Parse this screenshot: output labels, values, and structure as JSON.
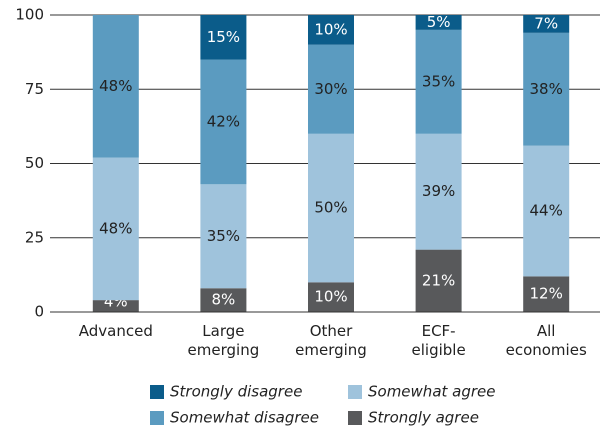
{
  "chart_data": {
    "type": "stacked-bar",
    "categories": [
      "Advanced",
      "Large emerging",
      "Other emerging",
      "ECF-eligible",
      "All economies"
    ],
    "series": [
      {
        "name": "Strongly agree",
        "color": "#58595b",
        "values": [
          4,
          8,
          10,
          21,
          12
        ],
        "value_labels": [
          "4%",
          "8%",
          "10%",
          "21%",
          "12%"
        ]
      },
      {
        "name": "Somewhat agree",
        "color": "#9fc3dc",
        "values": [
          48,
          35,
          50,
          39,
          44
        ],
        "value_labels": [
          "48%",
          "35%",
          "50%",
          "39%",
          "44%"
        ]
      },
      {
        "name": "Somewhat disagree",
        "color": "#5b9bc0",
        "values": [
          48,
          42,
          30,
          35,
          38
        ],
        "value_labels": [
          "48%",
          "42%",
          "30%",
          "35%",
          "38%"
        ]
      },
      {
        "name": "Strongly disagree",
        "color": "#0b5c8a",
        "values": [
          null,
          15,
          10,
          5,
          7
        ],
        "value_labels": [
          null,
          "15%",
          "10%",
          "5%",
          "7%"
        ]
      }
    ],
    "ylim": [
      0,
      100
    ],
    "yticks": [
      0,
      25,
      50,
      75,
      100
    ],
    "grid": true
  }
}
